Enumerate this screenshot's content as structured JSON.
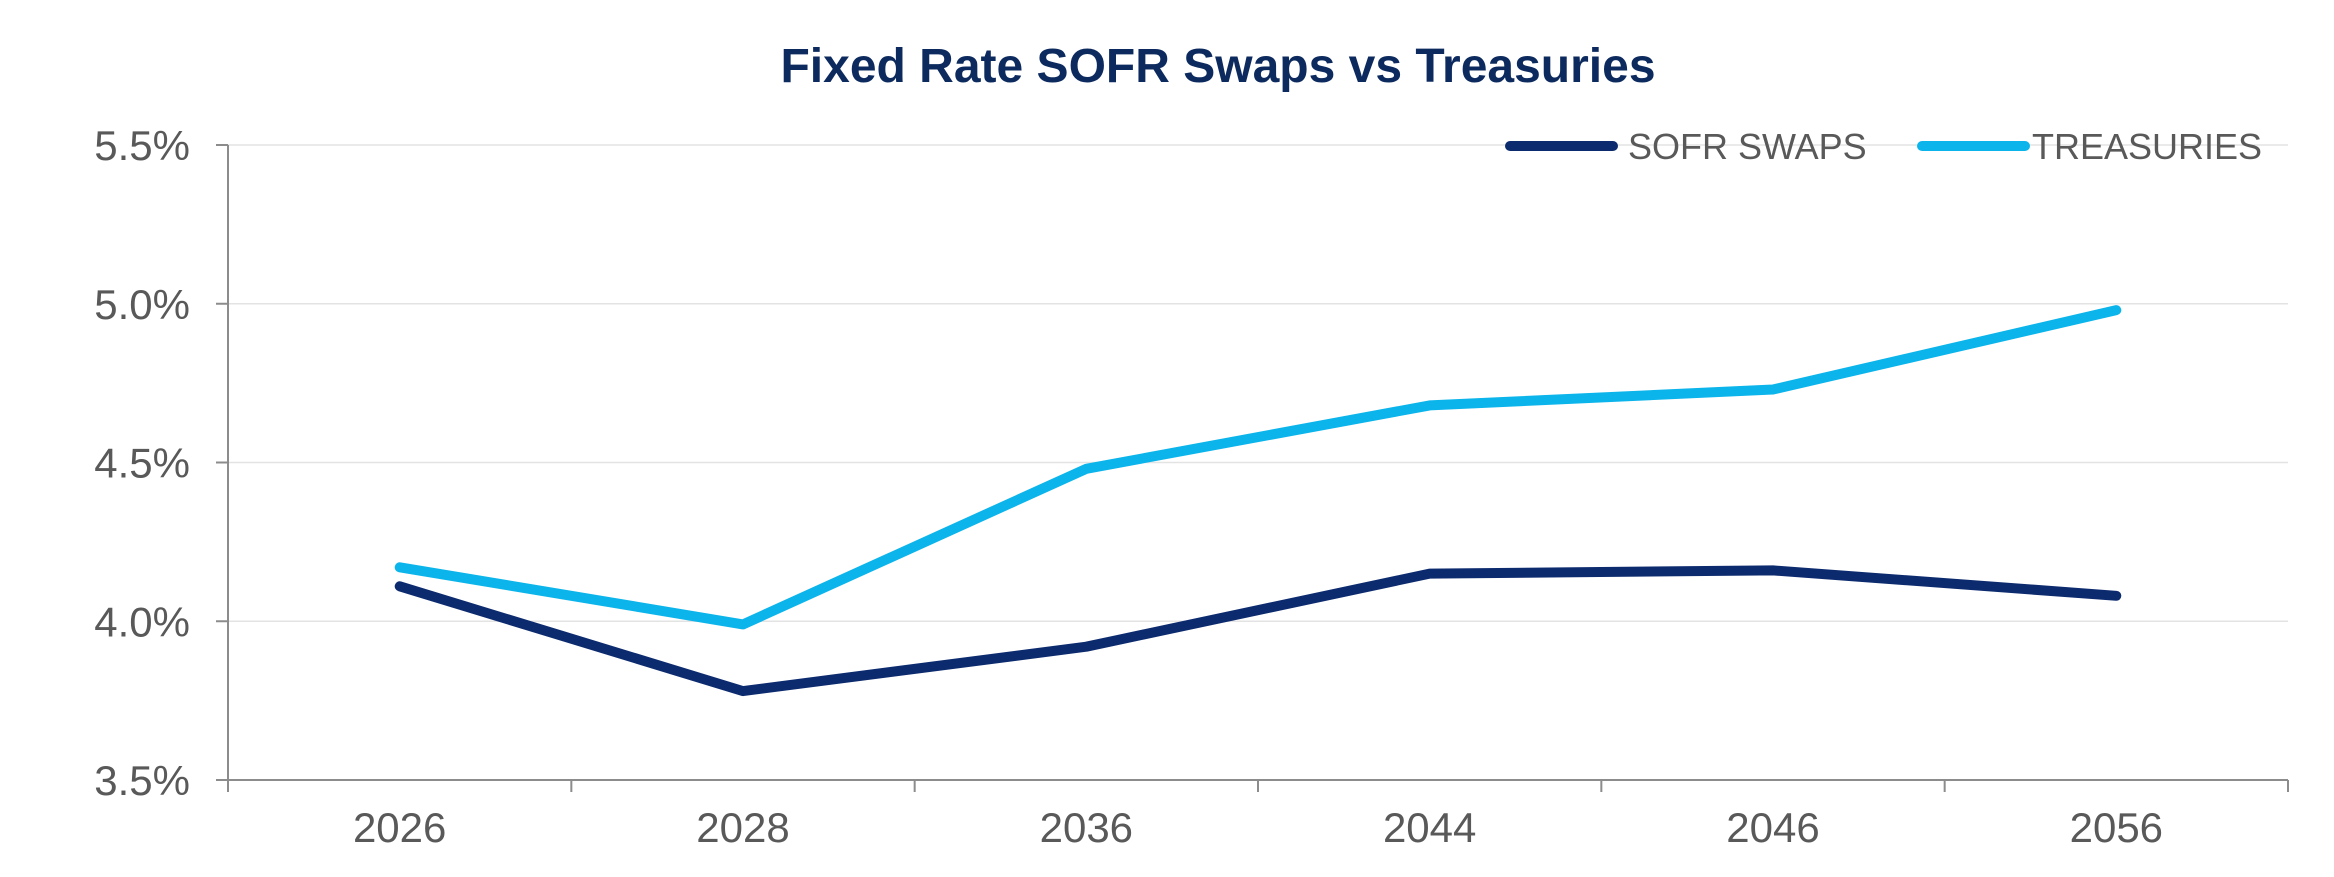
{
  "chart_data": {
    "type": "line",
    "title": "Fixed Rate SOFR Swaps vs Treasuries",
    "xlabel": "",
    "ylabel": "",
    "categories": [
      "2026",
      "2028",
      "2036",
      "2044",
      "2046",
      "2056"
    ],
    "y_ticks": [
      3.5,
      4.0,
      4.5,
      5.0,
      5.5
    ],
    "y_tick_labels": [
      "3.5%",
      "4.0%",
      "4.5%",
      "5.0%",
      "5.5%"
    ],
    "ylim": [
      3.5,
      5.5
    ],
    "grid": true,
    "legend_position": "top-right",
    "series": [
      {
        "name": "SOFR SWAPS",
        "color": "#0c2a6e",
        "values": [
          4.11,
          3.78,
          3.92,
          4.15,
          4.16,
          4.08
        ]
      },
      {
        "name": "TREASURIES",
        "color": "#0bb4ea",
        "values": [
          4.17,
          3.99,
          4.48,
          4.68,
          4.73,
          4.98
        ]
      }
    ]
  }
}
